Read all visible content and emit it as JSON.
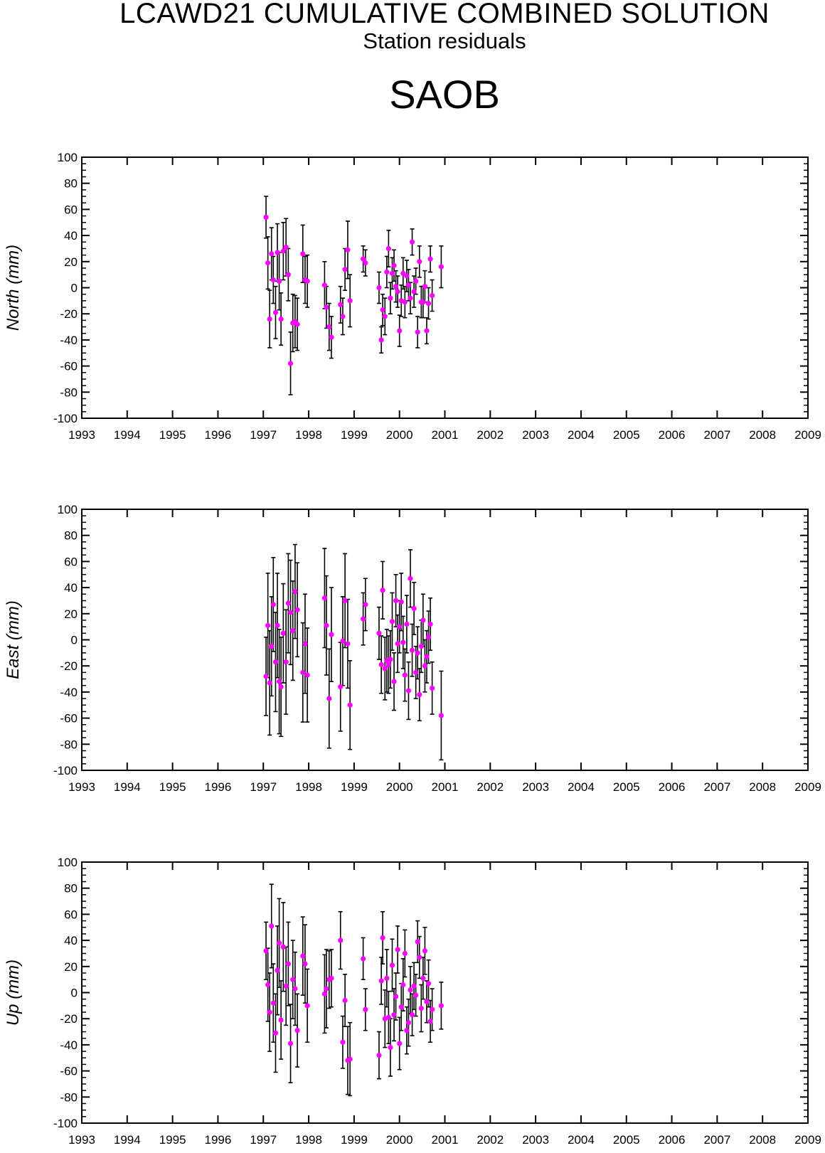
{
  "header": {
    "title": "LCAWD21 CUMULATIVE COMBINED SOLUTION",
    "subtitle": "Station residuals",
    "station": "SAOB"
  },
  "colors": {
    "point": "#ff00ff",
    "errorbar": "#000000",
    "axis": "#000000"
  },
  "chart_data": [
    {
      "type": "scatter",
      "ylabel": "North (mm)",
      "xlim": [
        1993,
        2009
      ],
      "ylim": [
        -100,
        100
      ],
      "xticks": [
        "1993",
        "1994",
        "1995",
        "1996",
        "1997",
        "1998",
        "1999",
        "2000",
        "2001",
        "2002",
        "2003",
        "2004",
        "2005",
        "2006",
        "2007",
        "2008",
        "2009"
      ],
      "yticks": [
        "100",
        "80",
        "60",
        "40",
        "20",
        "0",
        "-20",
        "-40",
        "-60",
        "-80",
        "-100"
      ],
      "grid": false,
      "series": [
        {
          "x": [
            1997.06,
            1997.1,
            1997.14,
            1997.18,
            1997.22,
            1997.27,
            1997.31,
            1997.35,
            1997.39,
            1997.44,
            1997.5,
            1997.55,
            1997.6,
            1997.65,
            1997.7,
            1997.75,
            1997.87,
            1997.92,
            1997.97,
            1998.35,
            1998.39,
            1998.45,
            1998.5,
            1998.7,
            1998.75,
            1998.8,
            1998.86,
            1998.91,
            1999.2,
            1999.25,
            1999.55,
            1999.6,
            1999.63,
            1999.68,
            1999.72,
            1999.76,
            1999.8,
            1999.84,
            1999.88,
            1999.92,
            1999.96,
            2000.0,
            2000.04,
            2000.08,
            2000.12,
            2000.16,
            2000.2,
            2000.24,
            2000.28,
            2000.32,
            2000.36,
            2000.4,
            2000.44,
            2000.48,
            2000.52,
            2000.56,
            2000.6,
            2000.64,
            2000.68,
            2000.72,
            2000.92
          ],
          "y": [
            54,
            19,
            -24,
            26,
            6,
            -19,
            27,
            5,
            -24,
            28,
            31,
            10,
            -58,
            -27,
            -26,
            -28,
            26,
            6,
            5,
            2,
            -15,
            -30,
            -38,
            -13,
            -22,
            14,
            29,
            -10,
            22,
            19,
            0,
            -40,
            -17,
            -22,
            12,
            30,
            -8,
            11,
            17,
            1,
            -3,
            -33,
            -10,
            11,
            -11,
            9,
            2,
            -8,
            35,
            -3,
            5,
            -34,
            20,
            -11,
            -11,
            1,
            -33,
            -12,
            22,
            -6,
            16
          ],
          "err": [
            16,
            20,
            22,
            20,
            18,
            20,
            22,
            22,
            20,
            22,
            22,
            20,
            24,
            22,
            20,
            20,
            22,
            18,
            20,
            18,
            16,
            18,
            16,
            14,
            14,
            16,
            22,
            20,
            10,
            10,
            12,
            10,
            12,
            14,
            12,
            14,
            12,
            12,
            12,
            12,
            12,
            12,
            12,
            12,
            12,
            12,
            12,
            12,
            10,
            12,
            10,
            12,
            12,
            12,
            12,
            12,
            10,
            12,
            10,
            12,
            16
          ]
        }
      ]
    },
    {
      "type": "scatter",
      "ylabel": "East (mm)",
      "xlim": [
        1993,
        2009
      ],
      "ylim": [
        -100,
        100
      ],
      "xticks": [
        "1993",
        "1994",
        "1995",
        "1996",
        "1997",
        "1998",
        "1999",
        "2000",
        "2001",
        "2002",
        "2003",
        "2004",
        "2005",
        "2006",
        "2007",
        "2008",
        "2009"
      ],
      "yticks": [
        "100",
        "80",
        "60",
        "40",
        "20",
        "0",
        "-20",
        "-40",
        "-60",
        "-80",
        "-100"
      ],
      "grid": false,
      "series": [
        {
          "x": [
            1997.06,
            1997.1,
            1997.14,
            1997.18,
            1997.22,
            1997.27,
            1997.31,
            1997.35,
            1997.39,
            1997.44,
            1997.5,
            1997.55,
            1997.6,
            1997.65,
            1997.7,
            1997.75,
            1997.87,
            1997.92,
            1997.97,
            1998.35,
            1998.39,
            1998.45,
            1998.5,
            1998.7,
            1998.75,
            1998.8,
            1998.86,
            1998.91,
            1999.2,
            1999.25,
            1999.55,
            1999.6,
            1999.63,
            1999.68,
            1999.72,
            1999.76,
            1999.8,
            1999.84,
            1999.88,
            1999.92,
            1999.96,
            2000.0,
            2000.04,
            2000.08,
            2000.12,
            2000.16,
            2000.2,
            2000.24,
            2000.28,
            2000.32,
            2000.36,
            2000.4,
            2000.44,
            2000.48,
            2000.52,
            2000.56,
            2000.6,
            2000.64,
            2000.68,
            2000.72,
            2000.92
          ],
          "y": [
            -28,
            11,
            -33,
            -5,
            27,
            -17,
            11,
            -32,
            -36,
            5,
            -17,
            28,
            21,
            7,
            37,
            23,
            -25,
            -3,
            -27,
            32,
            11,
            -45,
            4,
            -36,
            -1,
            30,
            -3,
            -50,
            16,
            27,
            5,
            -19,
            38,
            -22,
            -16,
            -19,
            -15,
            14,
            -32,
            30,
            -3,
            10,
            29,
            -2,
            -27,
            12,
            -39,
            47,
            -8,
            24,
            -25,
            -10,
            -42,
            -5,
            15,
            -20,
            -13,
            2,
            12,
            -37,
            -58
          ],
          "err": [
            30,
            40,
            40,
            38,
            36,
            38,
            40,
            40,
            38,
            38,
            40,
            38,
            40,
            38,
            36,
            36,
            38,
            38,
            36,
            38,
            38,
            38,
            36,
            34,
            34,
            36,
            34,
            34,
            20,
            20,
            20,
            22,
            22,
            24,
            24,
            22,
            22,
            22,
            22,
            20,
            22,
            20,
            22,
            20,
            20,
            22,
            22,
            22,
            20,
            20,
            20,
            20,
            20,
            20,
            20,
            20,
            20,
            20,
            20,
            20,
            34
          ]
        }
      ]
    },
    {
      "type": "scatter",
      "ylabel": "Up (mm)",
      "xlim": [
        1993,
        2009
      ],
      "ylim": [
        -100,
        100
      ],
      "xticks": [
        "1993",
        "1994",
        "1995",
        "1996",
        "1997",
        "1998",
        "1999",
        "2000",
        "2001",
        "2002",
        "2003",
        "2004",
        "2005",
        "2006",
        "2007",
        "2008",
        "2009"
      ],
      "yticks": [
        "100",
        "80",
        "60",
        "40",
        "20",
        "0",
        "-20",
        "-40",
        "-60",
        "-80",
        "-100"
      ],
      "grid": false,
      "series": [
        {
          "x": [
            1997.06,
            1997.1,
            1997.14,
            1997.18,
            1997.22,
            1997.27,
            1997.31,
            1997.35,
            1997.39,
            1997.44,
            1997.5,
            1997.55,
            1997.6,
            1997.65,
            1997.7,
            1997.75,
            1997.87,
            1997.92,
            1997.97,
            1998.35,
            1998.39,
            1998.45,
            1998.5,
            1998.7,
            1998.75,
            1998.8,
            1998.86,
            1998.91,
            1999.2,
            1999.25,
            1999.55,
            1999.6,
            1999.63,
            1999.68,
            1999.72,
            1999.76,
            1999.8,
            1999.84,
            1999.88,
            1999.92,
            1999.96,
            2000.0,
            2000.04,
            2000.08,
            2000.12,
            2000.16,
            2000.2,
            2000.24,
            2000.28,
            2000.32,
            2000.36,
            2000.4,
            2000.44,
            2000.48,
            2000.52,
            2000.56,
            2000.6,
            2000.64,
            2000.68,
            2000.72,
            2000.92
          ],
          "y": [
            32,
            6,
            -15,
            51,
            -8,
            -31,
            17,
            38,
            -21,
            35,
            5,
            22,
            -39,
            10,
            3,
            -29,
            28,
            22,
            -10,
            -1,
            3,
            10,
            11,
            40,
            -38,
            -6,
            -52,
            -51,
            26,
            -13,
            -48,
            9,
            42,
            -20,
            11,
            -19,
            -42,
            21,
            -17,
            -3,
            33,
            -39,
            -11,
            6,
            30,
            -29,
            -23,
            2,
            -17,
            5,
            -2,
            39,
            27,
            -12,
            11,
            32,
            -7,
            7,
            -22,
            -13,
            -10
          ],
          "err": [
            22,
            28,
            30,
            32,
            30,
            30,
            34,
            34,
            30,
            34,
            30,
            32,
            30,
            30,
            28,
            28,
            30,
            30,
            28,
            30,
            30,
            22,
            22,
            22,
            20,
            20,
            26,
            28,
            16,
            16,
            18,
            18,
            20,
            22,
            22,
            20,
            22,
            20,
            20,
            18,
            18,
            20,
            18,
            20,
            18,
            18,
            18,
            18,
            16,
            18,
            16,
            16,
            16,
            18,
            16,
            18,
            16,
            18,
            16,
            16,
            18
          ]
        }
      ]
    }
  ]
}
